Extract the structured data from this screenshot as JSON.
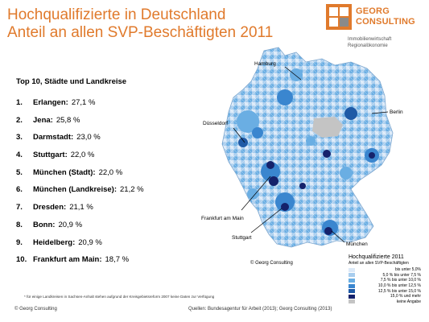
{
  "title": {
    "line1": "Hochqualifizierte in Deutschland",
    "line2": "Anteil an allen SVP-Beschäftigten 2011"
  },
  "logo": {
    "line1": "GEORG",
    "line2": "CONSULTING",
    "sub1": "Immobilienwirtschaft",
    "sub2": "Regionalökonomie",
    "colors": {
      "orange": "#e07a2c",
      "grey": "#8a8a8a"
    }
  },
  "list": {
    "heading": "Top 10, Städte und Landkreise",
    "items": [
      {
        "rank": "1.",
        "name": "Erlangen:",
        "value": "27,1 %"
      },
      {
        "rank": "2.",
        "name": "Jena:",
        "value": "25,8 %"
      },
      {
        "rank": "3.",
        "name": "Darmstadt:",
        "value": "23,0 %"
      },
      {
        "rank": "4.",
        "name": "Stuttgart:",
        "value": "22,0 %"
      },
      {
        "rank": "5.",
        "name": "München (Stadt):",
        "value": "22,0 %"
      },
      {
        "rank": "6.",
        "name": "München (Landkreise):",
        "value": "21,2 %"
      },
      {
        "rank": "7.",
        "name": "Dresden:",
        "value": "21,1 %"
      },
      {
        "rank": "8.",
        "name": "Bonn:",
        "value": "20,9 %"
      },
      {
        "rank": "9.",
        "name": "Heidelberg:",
        "value": "20,9 %"
      },
      {
        "rank": "10.",
        "name": "Frankfurt am Main:",
        "value": "18,7 %"
      }
    ]
  },
  "map": {
    "cities": [
      "Hamburg",
      "Berlin",
      "Düsseldorf",
      "Frankfurt am Main",
      "Stuttgart",
      "München"
    ],
    "copyright": "© Georg Consulting"
  },
  "legend": {
    "title": "Hochqualifizierte 2011",
    "subtitle": "Anteil an allen SVP-Beschäftigten",
    "items": [
      {
        "label": "bis unter 5,0%",
        "color": "#dbe9f8"
      },
      {
        "label": "5,0 % bis unter 7,5 %",
        "color": "#a8cdee"
      },
      {
        "label": "7,5 % bis unter 10,0 %",
        "color": "#6aaee3"
      },
      {
        "label": "10,0 % bis unter 12,5 %",
        "color": "#3a86cf"
      },
      {
        "label": "12,5 % bis unter 15,0 %",
        "color": "#1f5aa6"
      },
      {
        "label": "15,0 % und mehr",
        "color": "#15226b"
      },
      {
        "label": "keine Angabe",
        "color": "#c4c4c4"
      }
    ]
  },
  "footnote": "* für einige Landkreisen in Sachsen-Anhalt stehen aufgrund der Kreisgebietsreform 2007 keine Daten zur Verfügung",
  "footer": {
    "copyright": "© Georg Consulting",
    "source": "Quellen: Bundesagentur für Arbeit (2013); Georg Consulting (2013)"
  }
}
